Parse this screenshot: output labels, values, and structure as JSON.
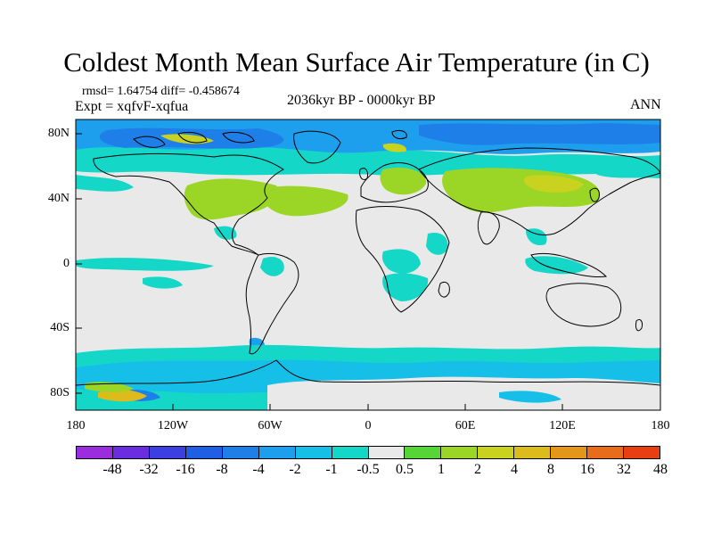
{
  "title": "Coldest Month Mean Surface Air Temperature (in C)",
  "stats_line": "rmsd= 1.64754  diff= -0.458674",
  "experiment_line": "Expt = xqfvF-xqfua",
  "period_line": "2036kyr BP - 0000kyr BP",
  "season_label": "ANN",
  "latitude_labels": [
    "80N",
    "40N",
    "0",
    "40S",
    "80S"
  ],
  "longitude_labels": [
    "180",
    "120W",
    "60W",
    "0",
    "60E",
    "120E",
    "180"
  ],
  "colorbar": {
    "labels": [
      "-48",
      "-32",
      "-16",
      "-8",
      "-4",
      "-2",
      "-1",
      "-0.5",
      "0.5",
      "1",
      "2",
      "4",
      "8",
      "16",
      "32",
      "48"
    ],
    "colors": [
      "#9b2ddf",
      "#6a2ee0",
      "#3d3fe0",
      "#1f5fe3",
      "#1e7fe8",
      "#1e9fee",
      "#16bfe8",
      "#15d7c8",
      "#e9e9e9",
      "#56d636",
      "#9bd626",
      "#c8d21f",
      "#dcbc1d",
      "#e4961a",
      "#e86c19",
      "#e83f12"
    ]
  },
  "colors": {
    "land_outline": "#000000",
    "neutral": "#e9e9e9",
    "teal": "#15d7c8",
    "cyan": "#16bfe8",
    "light_blue": "#1e9fee",
    "blue": "#1e7fe8",
    "green": "#9bd626",
    "yellow_green": "#c8d21f",
    "orange": "#dcbc1d"
  }
}
